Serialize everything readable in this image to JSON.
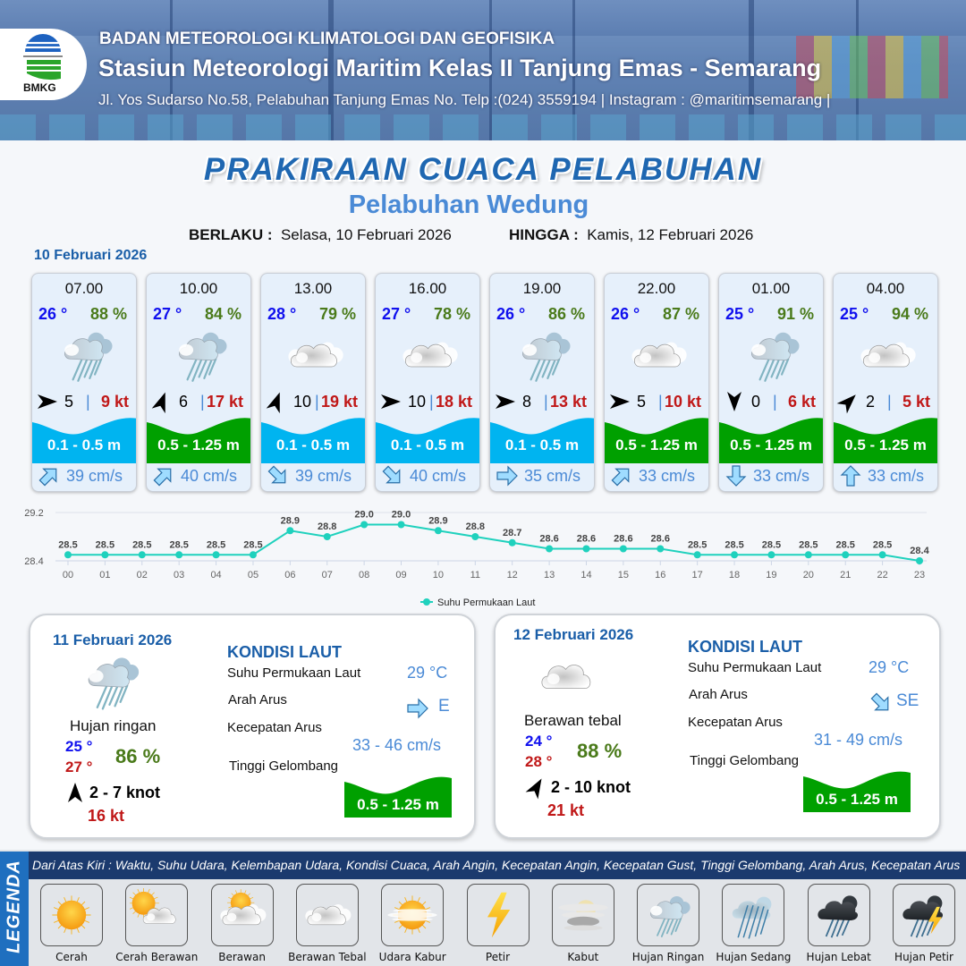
{
  "header": {
    "logo_text": "BMKG",
    "org": "BADAN METEOROLOGI KLIMATOLOGI DAN GEOFISIKA",
    "station": "Stasiun Meteorologi Maritim Kelas II Tanjung Emas - Semarang",
    "address": "Jl. Yos Sudarso No.58, Pelabuhan Tanjung Emas No. Telp :(024) 3559194 | Instagram : @maritimsemarang |"
  },
  "title": "PRAKIRAAN CUACA PELABUHAN",
  "subtitle": "Pelabuhan Wedung",
  "validity": {
    "from_label": "BERLAKU :",
    "from": "Selasa, 10 Februari 2026",
    "to_label": "HINGGA :",
    "to": "Kamis, 12 Februari 2026"
  },
  "day1_label": "10 Februari 2026",
  "colors": {
    "wave_low": "#00b4f0",
    "wave_mid": "#00a000",
    "temp": "#1010ee",
    "humidity": "#4a7a1a",
    "gust": "#c01818",
    "current": "#4a8ad6",
    "sst_line": "#1fd1bd"
  },
  "forecasts": [
    {
      "time": "07.00",
      "temp": "26 °",
      "humidity": "88 %",
      "weather_icon": "hujan-ringan",
      "wind_heading_deg": 90,
      "wind_speed": "5",
      "gust": "9 kt",
      "wave": "0.1 - 0.5 m",
      "wave_level": "low",
      "current_dir": "NE",
      "current_speed": "39 cm/s"
    },
    {
      "time": "10.00",
      "temp": "27 °",
      "humidity": "84 %",
      "weather_icon": "hujan-ringan",
      "wind_heading_deg": 20,
      "wind_speed": "6",
      "gust": "17 kt",
      "wave": "0.5 - 1.25 m",
      "wave_level": "mid",
      "current_dir": "NE",
      "current_speed": "40 cm/s"
    },
    {
      "time": "13.00",
      "temp": "28 °",
      "humidity": "79 %",
      "weather_icon": "berawan-tebal",
      "wind_heading_deg": 20,
      "wind_speed": "10",
      "gust": "19 kt",
      "wave": "0.1 - 0.5 m",
      "wave_level": "low",
      "current_dir": "SE",
      "current_speed": "39 cm/s"
    },
    {
      "time": "16.00",
      "temp": "27 °",
      "humidity": "78 %",
      "weather_icon": "berawan-tebal",
      "wind_heading_deg": 90,
      "wind_speed": "10",
      "gust": "18 kt",
      "wave": "0.1 - 0.5 m",
      "wave_level": "low",
      "current_dir": "SE",
      "current_speed": "40 cm/s"
    },
    {
      "time": "19.00",
      "temp": "26 °",
      "humidity": "86 %",
      "weather_icon": "hujan-ringan",
      "wind_heading_deg": 90,
      "wind_speed": "8",
      "gust": "13 kt",
      "wave": "0.1 - 0.5 m",
      "wave_level": "low",
      "current_dir": "E",
      "current_speed": "35 cm/s"
    },
    {
      "time": "22.00",
      "temp": "26 °",
      "humidity": "87 %",
      "weather_icon": "berawan-tebal",
      "wind_heading_deg": 90,
      "wind_speed": "5",
      "gust": "10 kt",
      "wave": "0.5 - 1.25 m",
      "wave_level": "mid",
      "current_dir": "NE",
      "current_speed": "33 cm/s"
    },
    {
      "time": "01.00",
      "temp": "25 °",
      "humidity": "91 %",
      "weather_icon": "hujan-ringan",
      "wind_heading_deg": 180,
      "wind_speed": "0",
      "gust": "6 kt",
      "wave": "0.5 - 1.25 m",
      "wave_level": "mid",
      "current_dir": "S",
      "current_speed": "33 cm/s"
    },
    {
      "time": "04.00",
      "temp": "25 °",
      "humidity": "94 %",
      "weather_icon": "berawan-tebal",
      "wind_heading_deg": 45,
      "wind_speed": "2",
      "gust": "5 kt",
      "wave": "0.5 - 1.25 m",
      "wave_level": "mid",
      "current_dir": "N",
      "current_speed": "33 cm/s"
    }
  ],
  "chart_data": {
    "type": "line",
    "categories": [
      "00",
      "01",
      "02",
      "03",
      "04",
      "05",
      "06",
      "07",
      "08",
      "09",
      "10",
      "11",
      "12",
      "13",
      "14",
      "15",
      "16",
      "17",
      "18",
      "19",
      "20",
      "21",
      "22",
      "23"
    ],
    "series": [
      {
        "name": "Suhu Permukaan Laut",
        "values": [
          28.5,
          28.5,
          28.5,
          28.5,
          28.5,
          28.5,
          28.9,
          28.8,
          29.0,
          29.0,
          28.9,
          28.8,
          28.7,
          28.6,
          28.6,
          28.6,
          28.6,
          28.5,
          28.5,
          28.5,
          28.5,
          28.5,
          28.5,
          28.4
        ]
      }
    ],
    "yticks": [
      "28.4",
      "29.2"
    ],
    "ylim": [
      28.4,
      29.2
    ],
    "grid": true,
    "legend": "bottom"
  },
  "days": [
    {
      "date": "11 Februari 2026",
      "weather_icon": "hujan-ringan",
      "condition": "Hujan ringan",
      "temp_min": "25 °",
      "temp_max": "27 °",
      "humidity": "86 %",
      "wind_heading_deg": 0,
      "wind_range": "2  - 7 knot",
      "gust": "16 kt",
      "sea": {
        "heading": "KONDISI LAUT",
        "sst_label": "Suhu Permukaan Laut",
        "sst": "29 °C",
        "current_dir_label": "Arah Arus",
        "current_dir": "E",
        "current_speed_label": "Kecepatan Arus",
        "current_speed": "33 - 46 cm/s",
        "wave_label": "Tinggi Gelombang",
        "wave": "0.5 - 1.25 m",
        "wave_level": "mid"
      }
    },
    {
      "date": "12 Februari 2026",
      "weather_icon": "berawan-tebal",
      "condition": "Berawan tebal",
      "temp_min": "24 °",
      "temp_max": "28 °",
      "humidity": "88 %",
      "wind_heading_deg": 30,
      "wind_range": "2  - 10 knot",
      "gust": "21 kt",
      "sea": {
        "heading": "KONDISI LAUT",
        "sst_label": "Suhu Permukaan Laut",
        "sst": "29 °C",
        "current_dir_label": "Arah Arus",
        "current_dir": "SE",
        "current_speed_label": "Kecepatan Arus",
        "current_speed": "31 - 49 cm/s",
        "wave_label": "Tinggi Gelombang",
        "wave": "0.5 - 1.25 m",
        "wave_level": "mid"
      }
    }
  ],
  "legend": {
    "title": "LEGENDA",
    "description": "Dari Atas Kiri : Waktu, Suhu Udara, Kelembapan Udara, Kondisi Cuaca, Arah Angin, Kecepatan Angin, Kecepatan Gust, Tinggi Gelombang, Arah Arus, Kecepatan Arus",
    "items": [
      {
        "label": "Cerah",
        "icon": "cerah"
      },
      {
        "label": "Cerah Berawan",
        "icon": "cerah-berawan"
      },
      {
        "label": "Berawan",
        "icon": "berawan"
      },
      {
        "label": "Berawan Tebal",
        "icon": "berawan-tebal"
      },
      {
        "label": "Udara Kabur",
        "icon": "udara-kabur"
      },
      {
        "label": "Petir",
        "icon": "petir"
      },
      {
        "label": "Kabut",
        "icon": "kabut"
      },
      {
        "label": "Hujan Ringan",
        "icon": "hujan-ringan"
      },
      {
        "label": "Hujan Sedang",
        "icon": "hujan-sedang"
      },
      {
        "label": "Hujan Lebat",
        "icon": "hujan-lebat"
      },
      {
        "label": "Hujan Petir",
        "icon": "hujan-petir"
      }
    ]
  }
}
